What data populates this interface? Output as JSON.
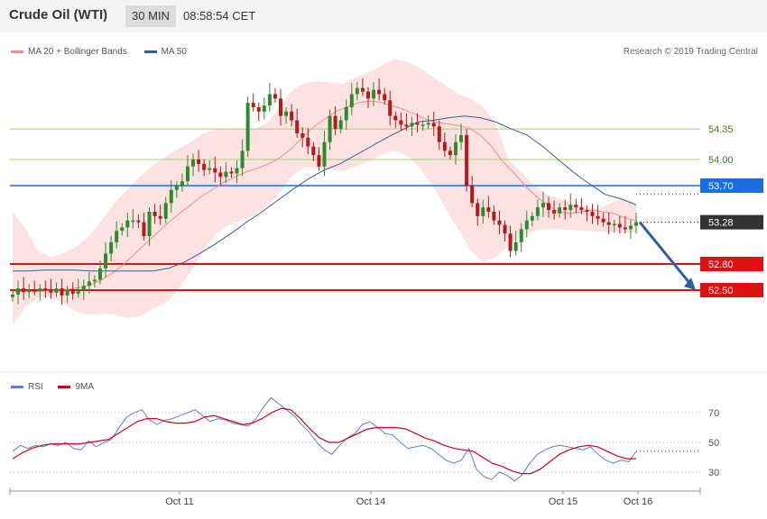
{
  "header": {
    "title": "Crude Oil (WTI)",
    "timeframe": "30 MIN",
    "time": "08:58:54 CET"
  },
  "legend": {
    "ma20": {
      "label": "MA 20 + Bollinger Bands",
      "color": "#ef8c8c"
    },
    "ma50": {
      "label": "MA 50",
      "color": "#3a5a9a"
    },
    "rsi": {
      "label": "RSI",
      "color": "#5b7fd6"
    },
    "rsi_ma": {
      "label": "9MA",
      "color": "#d0021b"
    }
  },
  "credit": "Research © 2019 Trading Central",
  "colors": {
    "bull": "#2d8b2d",
    "bear": "#b51a1a",
    "support": "#e01010",
    "resistance": "#1a6fe0",
    "target": "#a4cf78",
    "arrow": "#2e5fa3",
    "band": "#fde2e2",
    "current": "#333333"
  },
  "chart_data": [
    {
      "type": "candlestick",
      "ylim": [
        52.0,
        55.0
      ],
      "x_tick_labels": [
        "Oct 11",
        "Oct 14",
        "Oct 15",
        "Oct 16"
      ],
      "levels": [
        {
          "value": 54.35,
          "label": "54.35",
          "kind": "target"
        },
        {
          "value": 54.0,
          "label": "54.00",
          "kind": "target"
        },
        {
          "value": 53.7,
          "label": "53.70",
          "kind": "resistance"
        },
        {
          "value": 53.28,
          "label": "53.28",
          "kind": "current"
        },
        {
          "value": 52.8,
          "label": "52.80",
          "kind": "support"
        },
        {
          "value": 52.5,
          "label": "52.50",
          "kind": "support"
        }
      ],
      "close_series": [
        52.45,
        52.52,
        52.48,
        52.5,
        52.49,
        52.52,
        52.5,
        52.47,
        52.52,
        52.44,
        52.5,
        52.46,
        52.5,
        52.55,
        52.6,
        52.62,
        52.75,
        52.92,
        53.05,
        53.18,
        53.22,
        53.3,
        53.3,
        53.28,
        53.12,
        53.4,
        53.35,
        53.32,
        53.5,
        53.65,
        53.7,
        53.75,
        53.92,
        54.0,
        53.95,
        53.88,
        53.9,
        53.85,
        53.8,
        53.86,
        53.84,
        53.9,
        54.1,
        54.65,
        54.6,
        54.55,
        54.62,
        54.75,
        54.7,
        54.5,
        54.55,
        54.45,
        54.3,
        54.25,
        54.15,
        54.05,
        53.92,
        54.2,
        54.5,
        54.35,
        54.45,
        54.6,
        54.75,
        54.82,
        54.78,
        54.7,
        54.8,
        54.75,
        54.68,
        54.5,
        54.45,
        54.4,
        54.38,
        54.42,
        54.4,
        54.4,
        54.42,
        54.38,
        54.2,
        54.1,
        54.05,
        54.2,
        54.28,
        53.7,
        53.5,
        53.35,
        53.45,
        53.4,
        53.3,
        53.25,
        53.15,
        52.95,
        53.05,
        53.2,
        53.3,
        53.35,
        53.45,
        53.5,
        53.42,
        53.38,
        53.45,
        53.42,
        53.48,
        53.45,
        53.42,
        53.4,
        53.35,
        53.32,
        53.28,
        53.25,
        53.26,
        53.22,
        53.2,
        53.24,
        53.28
      ],
      "bollinger": {
        "ma20": [
          52.48,
          52.48,
          52.48,
          52.49,
          52.5,
          52.51,
          52.53,
          52.56,
          52.62,
          52.7,
          52.8,
          52.92,
          53.04,
          53.16,
          53.28,
          53.38,
          53.48,
          53.58,
          53.66,
          53.74,
          53.8,
          53.86,
          53.9,
          53.95,
          54.02,
          54.12,
          54.25,
          54.37,
          54.46,
          54.55,
          54.6,
          54.65,
          54.67,
          54.66,
          54.62,
          54.58,
          54.53,
          54.47,
          54.43,
          54.41,
          54.39,
          54.36,
          54.28,
          54.15,
          53.98,
          53.85,
          53.7,
          53.58,
          53.48,
          53.4,
          53.38,
          53.4,
          53.42,
          53.4,
          53.38,
          53.33,
          53.3
        ],
        "upper": [
          53.4,
          53.2,
          52.95,
          52.88,
          52.92,
          53.0,
          53.12,
          53.3,
          53.5,
          53.65,
          53.8,
          53.93,
          54.03,
          54.12,
          54.2,
          54.3,
          54.35,
          54.35,
          54.36,
          54.35,
          54.42,
          54.6,
          54.8,
          54.88,
          54.9,
          54.88,
          54.87,
          54.95,
          55.0,
          55.08,
          55.15,
          55.12,
          55.05,
          54.95,
          54.85,
          54.75,
          54.7,
          54.6,
          54.4,
          54.0,
          53.85,
          53.7,
          53.6,
          53.55,
          53.5,
          53.45,
          53.42,
          53.5,
          53.55,
          53.5
        ],
        "lower": [
          52.1,
          52.3,
          52.42,
          52.42,
          52.35,
          52.25,
          52.22,
          52.23,
          52.22,
          52.18,
          52.2,
          52.28,
          52.35,
          52.5,
          52.72,
          52.95,
          53.15,
          53.25,
          53.3,
          53.36,
          53.46,
          53.62,
          53.82,
          53.92,
          53.9,
          53.88,
          53.87,
          53.92,
          53.98,
          54.06,
          54.1,
          54.04,
          53.9,
          53.7,
          53.45,
          53.2,
          52.95,
          52.82,
          52.88,
          53.02,
          53.13,
          53.18,
          53.2,
          53.2,
          53.19,
          53.18,
          53.17,
          53.17,
          53.16,
          53.16
        ]
      },
      "ma50": [
        52.72,
        52.72,
        52.73,
        52.73,
        52.73,
        52.72,
        52.72,
        52.72,
        52.72,
        52.72,
        52.75,
        52.82,
        52.92,
        53.03,
        53.15,
        53.28,
        53.4,
        53.53,
        53.66,
        53.78,
        53.88,
        53.95,
        54.05,
        54.15,
        54.25,
        54.34,
        54.43,
        54.45,
        54.48,
        54.5,
        54.48,
        54.43,
        54.35,
        54.28,
        54.15,
        54.0,
        53.85,
        53.72,
        53.6,
        53.55,
        53.48
      ]
    },
    {
      "type": "line",
      "title": "RSI",
      "ylim": [
        20,
        80
      ],
      "y_ticks": [
        70,
        50,
        30
      ],
      "series": [
        {
          "name": "RSI",
          "values": [
            44,
            48,
            46,
            48,
            47,
            49,
            48,
            50,
            46,
            45,
            51,
            47,
            50,
            52,
            60,
            67,
            70,
            72,
            65,
            62,
            65,
            66,
            68,
            70,
            72,
            68,
            64,
            66,
            65,
            63,
            62,
            61,
            66,
            74,
            80,
            76,
            72,
            68,
            62,
            57,
            50,
            45,
            42,
            48,
            53,
            56,
            62,
            64,
            60,
            56,
            55,
            50,
            46,
            47,
            48,
            46,
            42,
            38,
            36,
            38,
            46,
            32,
            27,
            25,
            30,
            28,
            24,
            28,
            36,
            42,
            45,
            47,
            48,
            47,
            46,
            45,
            47,
            42,
            38,
            36,
            38,
            37,
            44
          ]
        },
        {
          "name": "9MA",
          "values": [
            39,
            43,
            46,
            48,
            49,
            49,
            49,
            49,
            50,
            51,
            52,
            56,
            60,
            64,
            66,
            66,
            64,
            63,
            63,
            64,
            67,
            68,
            66,
            64,
            62,
            63,
            66,
            70,
            73,
            72,
            66,
            59,
            53,
            50,
            50,
            53,
            56,
            59,
            60,
            60,
            60,
            59,
            56,
            53,
            51,
            48,
            46,
            45,
            44,
            40,
            36,
            34,
            31,
            29,
            29,
            32,
            37,
            42,
            45,
            47,
            48,
            47,
            44,
            41,
            39,
            39
          ]
        }
      ]
    }
  ]
}
